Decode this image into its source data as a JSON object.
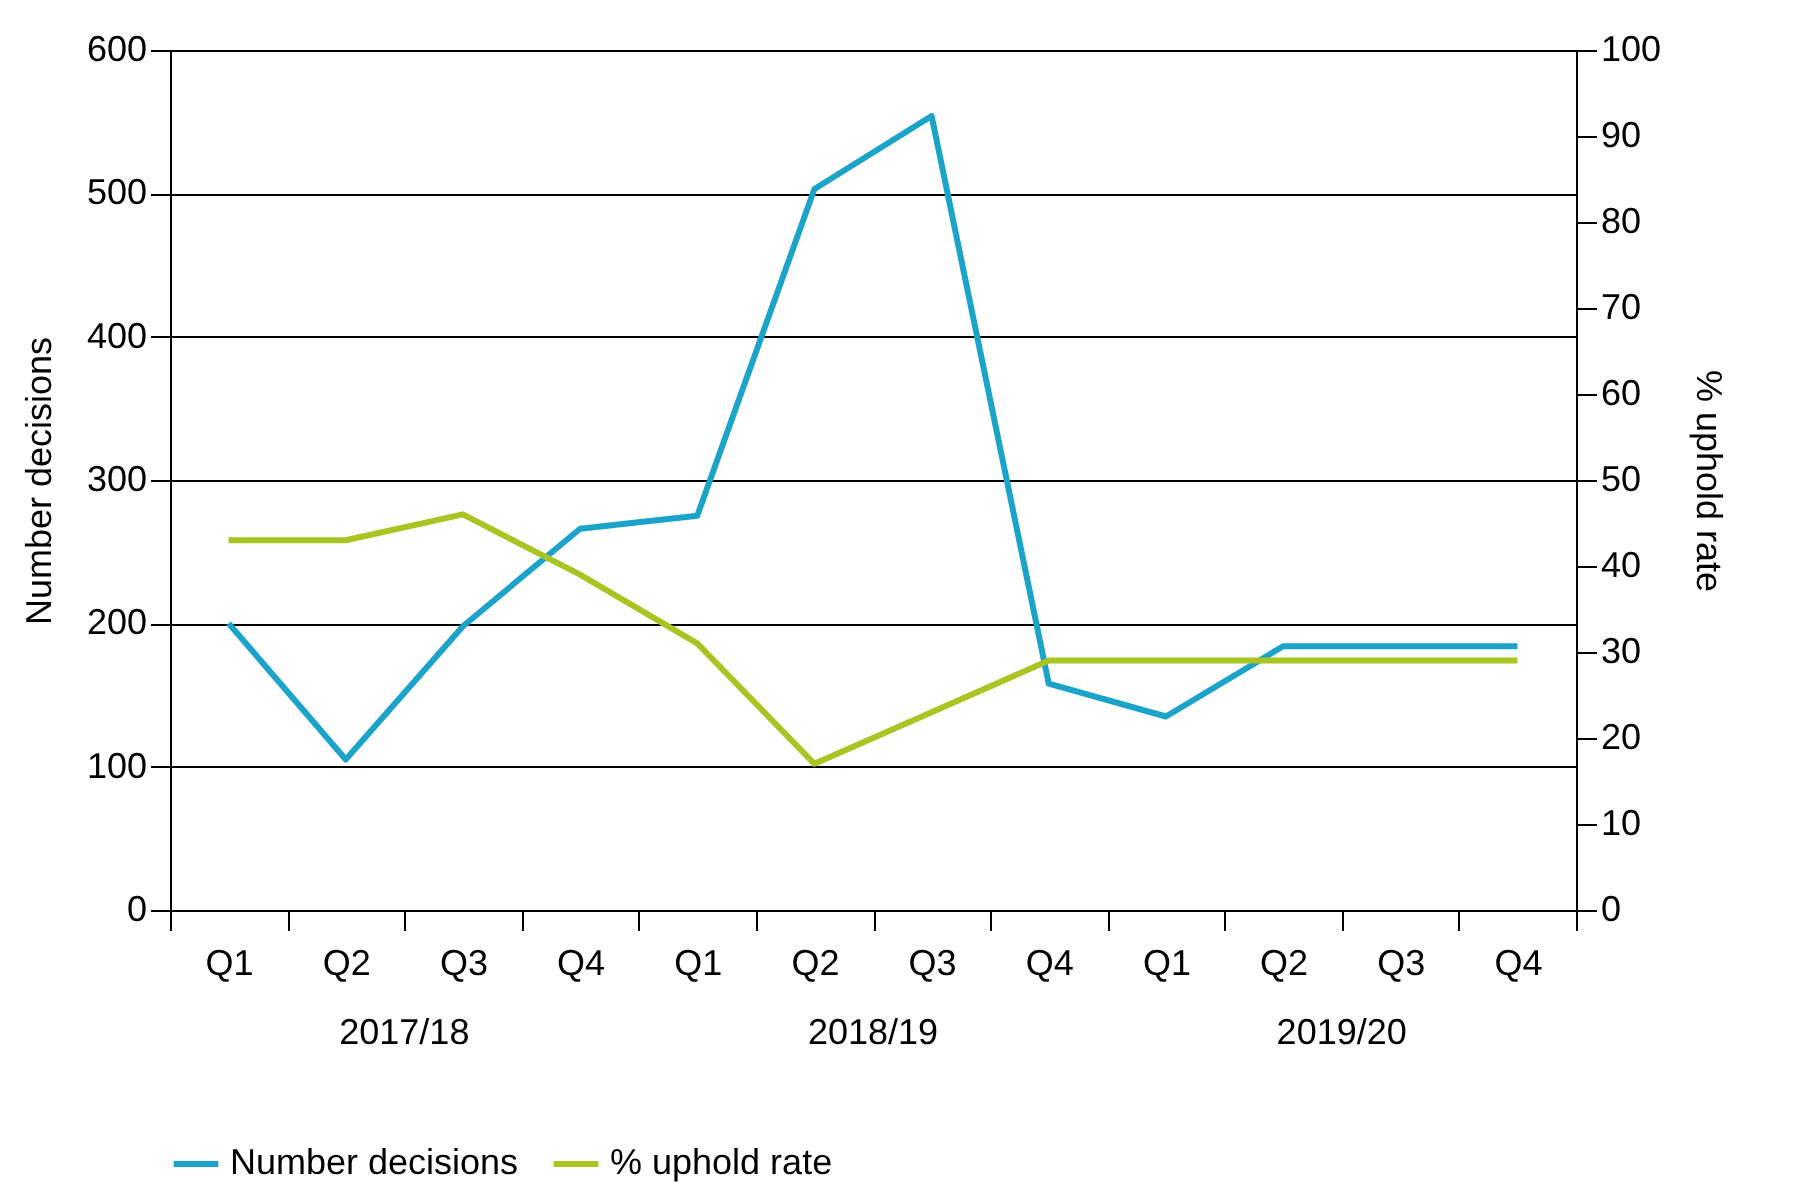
{
  "chart_data": {
    "type": "line",
    "categories": [
      "Q1",
      "Q2",
      "Q3",
      "Q4",
      "Q1",
      "Q2",
      "Q3",
      "Q4",
      "Q1",
      "Q2",
      "Q3",
      "Q4"
    ],
    "series": [
      {
        "name": "Number decisions",
        "color": "#1ba3c9",
        "values": [
          200,
          105,
          198,
          266,
          275,
          503,
          554,
          158,
          135,
          184,
          184,
          184
        ]
      },
      {
        "name": "% uphold rate",
        "color": "#a8c523",
        "axis": "y2",
        "values": [
          43,
          43,
          46,
          39,
          31,
          17,
          23,
          29,
          29,
          29,
          29,
          29
        ]
      }
    ],
    "ylabel": "Number decisions",
    "y2label": "% uphold rate",
    "ylim": [
      0,
      600
    ],
    "yticks": [
      0,
      100,
      200,
      300,
      400,
      500,
      600
    ],
    "y2lim": [
      0,
      100
    ],
    "y2ticks": [
      0,
      10,
      20,
      30,
      40,
      50,
      60,
      70,
      80,
      90,
      100
    ],
    "annotations": [
      "2017/18",
      "2018/19",
      "2019/20"
    ],
    "grid": "y",
    "legend": "bottom",
    "marker": "none",
    "line_style": "solid"
  }
}
